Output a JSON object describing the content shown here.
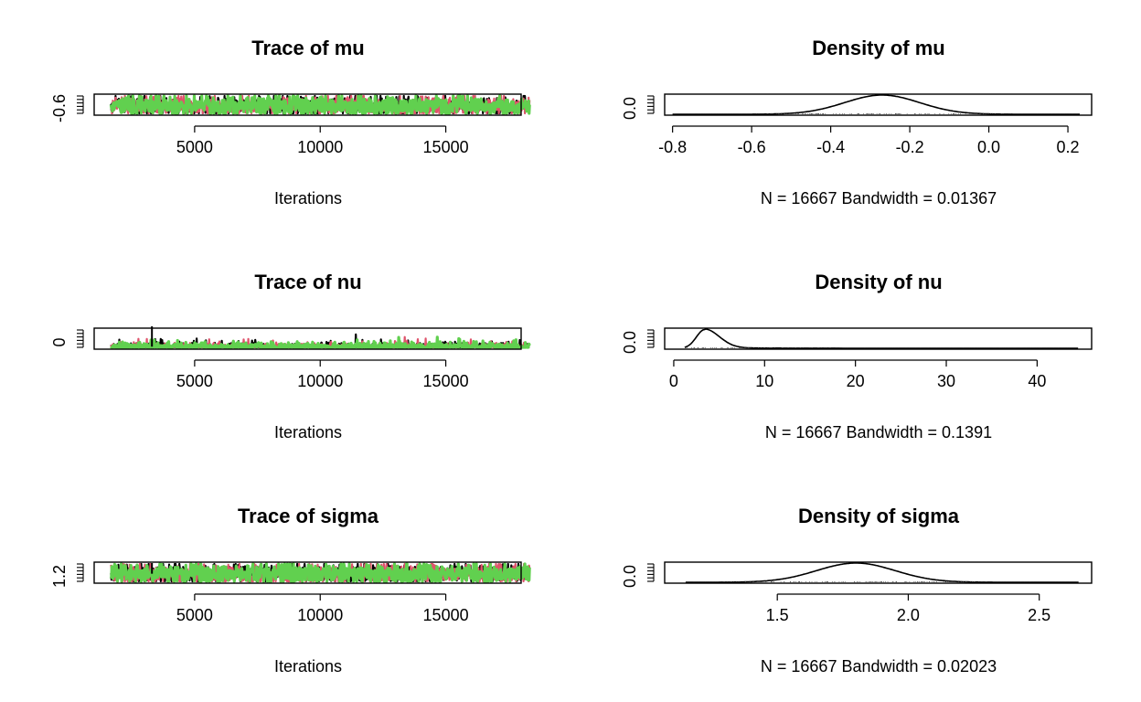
{
  "chart_data": [
    {
      "type": "line",
      "title": "Trace of mu",
      "xlabel": "Iterations",
      "xticks": [
        5000,
        10000,
        15000
      ],
      "xlim": [
        1000,
        18000
      ],
      "yticks": [
        "-0.6"
      ],
      "chain_colors": [
        "#000000",
        "#DF536B",
        "#61D04F"
      ],
      "iter_range": [
        1668,
        18334
      ],
      "center": -0.27,
      "spread": 0.07,
      "spikes": []
    },
    {
      "type": "line",
      "title": "Density of mu",
      "xlabel": "N = 16667   Bandwidth = 0.01367",
      "xticks": [
        "-0.8",
        "-0.6",
        "-0.4",
        "-0.2",
        "0.0",
        "0.2"
      ],
      "xlim": [
        -0.82,
        0.26
      ],
      "yticks": [
        "0.0"
      ],
      "density": {
        "mean": -0.27,
        "sd": 0.095,
        "support": [
          -0.8,
          0.23
        ]
      }
    },
    {
      "type": "line",
      "title": "Trace of nu",
      "xlabel": "Iterations",
      "xticks": [
        5000,
        10000,
        15000
      ],
      "xlim": [
        1000,
        18000
      ],
      "yticks": [
        "0"
      ],
      "chain_colors": [
        "#000000",
        "#DF536B",
        "#61D04F"
      ],
      "iter_range": [
        1668,
        18334
      ],
      "center": 3.6,
      "spread": 1.0,
      "spikes": [
        {
          "x": 3300,
          "y": 44
        }
      ]
    },
    {
      "type": "line",
      "title": "Density of nu",
      "xlabel": "N = 16667   Bandwidth = 0.1391",
      "xticks": [
        "0",
        "10",
        "20",
        "30",
        "40"
      ],
      "xlim": [
        -1,
        46
      ],
      "yticks": [
        "0.0"
      ],
      "density": {
        "mode": 3.4,
        "sd_left": 0.9,
        "sd_right": 1.6,
        "support": [
          1.2,
          44.5
        ]
      }
    },
    {
      "type": "line",
      "title": "Trace of sigma",
      "xlabel": "Iterations",
      "xticks": [
        5000,
        10000,
        15000
      ],
      "xlim": [
        1000,
        18000
      ],
      "yticks": [
        "1.2"
      ],
      "chain_colors": [
        "#000000",
        "#DF536B",
        "#61D04F"
      ],
      "iter_range": [
        1668,
        18334
      ],
      "center": 1.8,
      "spread": 0.14,
      "spikes": [
        {
          "x": 3300,
          "y": 2.6
        }
      ]
    },
    {
      "type": "line",
      "title": "Density of sigma",
      "xlabel": "N = 16667   Bandwidth = 0.02023",
      "xticks": [
        "1.5",
        "2.0",
        "2.5"
      ],
      "xlim": [
        1.07,
        2.7
      ],
      "yticks": [
        "0.0"
      ],
      "density": {
        "mean": 1.8,
        "sd": 0.15,
        "support": [
          1.15,
          2.65
        ]
      }
    }
  ]
}
